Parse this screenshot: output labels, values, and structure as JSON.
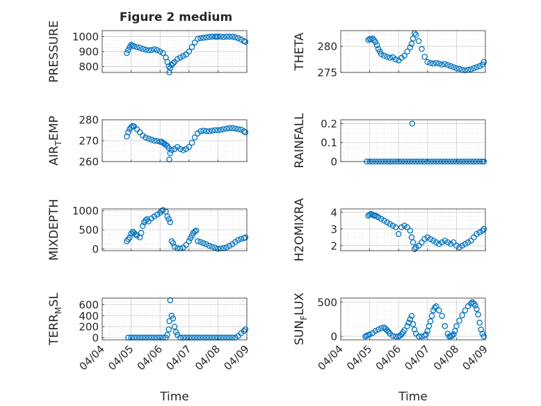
{
  "figure": {
    "title": "Figure 2 medium",
    "marker_color": "#0072bd",
    "x_tick_labels": [
      "04/04",
      "04/05",
      "04/06",
      "04/07",
      "04/08",
      "04/09"
    ],
    "x_label": "Time"
  },
  "chart_data": [
    {
      "type": "scatter",
      "id": "pressure",
      "ylabel": "PRESSURE",
      "xlim": [
        0,
        5
      ],
      "ylim": [
        760,
        1040
      ],
      "yticks": [
        800,
        900,
        1000
      ],
      "grid": true,
      "minor_grid": true,
      "x": [
        0.85,
        0.9,
        0.95,
        1.0,
        1.05,
        1.1,
        1.2,
        1.3,
        1.4,
        1.5,
        1.6,
        1.7,
        1.8,
        1.9,
        2.0,
        2.1,
        2.2,
        2.25,
        2.3,
        2.32,
        2.35,
        2.4,
        2.45,
        2.5,
        2.6,
        2.7,
        2.8,
        2.9,
        3.0,
        3.1,
        3.2,
        3.3,
        3.4,
        3.5,
        3.6,
        3.7,
        3.8,
        3.9,
        3.95,
        4.0,
        4.1,
        4.2,
        4.3,
        4.4,
        4.5,
        4.6,
        4.7,
        4.8,
        4.9,
        4.95
      ],
      "values": [
        890,
        910,
        930,
        945,
        940,
        935,
        930,
        925,
        918,
        912,
        908,
        910,
        915,
        910,
        900,
        890,
        860,
        830,
        800,
        760,
        790,
        810,
        820,
        830,
        850,
        860,
        870,
        880,
        900,
        930,
        960,
        985,
        990,
        992,
        995,
        998,
        1000,
        1000,
        1000,
        1000,
        1000,
        998,
        1000,
        1000,
        1000,
        995,
        990,
        980,
        970,
        965
      ]
    },
    {
      "type": "scatter",
      "id": "theta",
      "ylabel": "THETA",
      "xlim": [
        0,
        5
      ],
      "ylim": [
        275,
        283
      ],
      "yticks": [
        275,
        280
      ],
      "grid": true,
      "minor_grid": true,
      "x": [
        0.95,
        1.0,
        1.05,
        1.1,
        1.15,
        1.2,
        1.25,
        1.3,
        1.35,
        1.4,
        1.5,
        1.6,
        1.7,
        1.8,
        1.9,
        2.0,
        2.1,
        2.2,
        2.3,
        2.4,
        2.45,
        2.5,
        2.55,
        2.6,
        2.7,
        2.8,
        2.9,
        3.0,
        3.1,
        3.2,
        3.3,
        3.4,
        3.5,
        3.6,
        3.7,
        3.8,
        3.9,
        4.0,
        4.1,
        4.2,
        4.3,
        4.4,
        4.5,
        4.6,
        4.7,
        4.8,
        4.9,
        4.95
      ],
      "values": [
        281.2,
        281.4,
        281.3,
        281.5,
        281.2,
        280.8,
        280.2,
        279.5,
        279.0,
        278.5,
        278.2,
        278.0,
        277.8,
        277.9,
        277.5,
        277.3,
        277.8,
        278.2,
        279.0,
        279.8,
        280.5,
        281.5,
        282.5,
        282.2,
        281.0,
        279.5,
        278.0,
        277.0,
        276.8,
        276.7,
        276.8,
        276.7,
        276.5,
        276.6,
        276.4,
        276.2,
        276.0,
        275.8,
        275.7,
        275.5,
        275.4,
        275.5,
        275.6,
        275.8,
        276.0,
        276.2,
        276.5,
        277.0
      ]
    },
    {
      "type": "scatter",
      "id": "air_temp",
      "ylabel": "AIR_TEMP",
      "xlim": [
        0,
        5
      ],
      "ylim": [
        260,
        280
      ],
      "yticks": [
        260,
        270,
        280
      ],
      "grid": true,
      "minor_grid": true,
      "x": [
        0.85,
        0.9,
        0.95,
        1.0,
        1.05,
        1.1,
        1.2,
        1.3,
        1.4,
        1.5,
        1.6,
        1.7,
        1.8,
        1.9,
        2.0,
        2.05,
        2.1,
        2.15,
        2.2,
        2.25,
        2.3,
        2.32,
        2.35,
        2.4,
        2.5,
        2.6,
        2.7,
        2.8,
        2.9,
        3.0,
        3.1,
        3.2,
        3.3,
        3.4,
        3.5,
        3.6,
        3.7,
        3.8,
        3.9,
        4.0,
        4.1,
        4.2,
        4.3,
        4.4,
        4.5,
        4.6,
        4.7,
        4.8,
        4.9,
        4.95
      ],
      "values": [
        272.0,
        274.0,
        275.5,
        276.5,
        277.0,
        276.8,
        275.5,
        274.0,
        272.5,
        271.5,
        271.0,
        270.5,
        270.0,
        269.8,
        269.5,
        269.5,
        269.0,
        268.5,
        268.0,
        267.5,
        266.5,
        261.0,
        264.0,
        265.5,
        266.0,
        267.0,
        266.0,
        265.5,
        266.0,
        267.0,
        269.0,
        271.5,
        273.5,
        274.5,
        274.8,
        274.6,
        274.5,
        274.8,
        275.0,
        275.0,
        275.2,
        275.5,
        275.8,
        276.0,
        276.0,
        275.8,
        275.5,
        275.3,
        274.5,
        274.0
      ]
    },
    {
      "type": "scatter",
      "id": "rainfall",
      "ylabel": "RAINFALL",
      "xlim": [
        0,
        5
      ],
      "ylim": [
        0,
        0.22
      ],
      "yticks": [
        0,
        0.1,
        0.2
      ],
      "grid": true,
      "minor_grid": true,
      "x": [
        0.9,
        1.0,
        1.1,
        1.2,
        1.3,
        1.4,
        1.5,
        1.6,
        1.7,
        1.8,
        1.9,
        2.0,
        2.1,
        2.2,
        2.3,
        2.4,
        2.47,
        2.5,
        2.6,
        2.7,
        2.8,
        2.9,
        3.0,
        3.1,
        3.2,
        3.3,
        3.4,
        3.5,
        3.6,
        3.7,
        3.8,
        3.9,
        4.0,
        4.1,
        4.2,
        4.3,
        4.4,
        4.5,
        4.6,
        4.7,
        4.8,
        4.9,
        4.95
      ],
      "values": [
        0,
        0,
        0,
        0,
        0,
        0,
        0,
        0,
        0,
        0,
        0,
        0,
        0,
        0,
        0,
        0,
        0.2,
        0,
        0,
        0,
        0,
        0,
        0,
        0,
        0,
        0,
        0,
        0,
        0,
        0,
        0,
        0,
        0,
        0,
        0,
        0,
        0,
        0,
        0,
        0,
        0,
        0,
        0
      ]
    },
    {
      "type": "scatter",
      "id": "mixdepth",
      "ylabel": "MIXDEPTH",
      "xlim": [
        0,
        5
      ],
      "ylim": [
        -50,
        1050
      ],
      "yticks": [
        0,
        500,
        1000
      ],
      "grid": true,
      "minor_grid": true,
      "x": [
        0.85,
        0.9,
        0.95,
        1.0,
        1.05,
        1.1,
        1.15,
        1.2,
        1.3,
        1.35,
        1.4,
        1.45,
        1.5,
        1.55,
        1.6,
        1.7,
        1.8,
        1.9,
        2.0,
        2.05,
        2.1,
        2.2,
        2.25,
        2.3,
        2.35,
        2.4,
        2.45,
        2.5,
        2.6,
        2.7,
        2.8,
        2.9,
        3.0,
        3.05,
        3.1,
        3.15,
        3.2,
        3.25,
        3.3,
        3.4,
        3.5,
        3.6,
        3.7,
        3.8,
        3.9,
        4.0,
        4.1,
        4.2,
        4.3,
        4.4,
        4.5,
        4.6,
        4.7,
        4.8,
        4.9,
        4.95
      ],
      "values": [
        200,
        250,
        300,
        400,
        450,
        420,
        380,
        350,
        300,
        420,
        600,
        700,
        750,
        780,
        720,
        800,
        850,
        900,
        950,
        1000,
        1020,
        980,
        850,
        780,
        700,
        200,
        150,
        50,
        20,
        10,
        30,
        100,
        200,
        280,
        350,
        420,
        460,
        480,
        200,
        180,
        150,
        120,
        80,
        50,
        30,
        0,
        10,
        20,
        40,
        80,
        120,
        180,
        230,
        260,
        280,
        300
      ]
    },
    {
      "type": "scatter",
      "id": "h2omixra",
      "ylabel": "H2OMIXRA",
      "xlim": [
        0,
        5
      ],
      "ylim": [
        1.7,
        4.2
      ],
      "yticks": [
        2,
        3,
        4
      ],
      "grid": true,
      "minor_grid": true,
      "x": [
        0.95,
        1.0,
        1.05,
        1.1,
        1.15,
        1.2,
        1.25,
        1.3,
        1.4,
        1.5,
        1.6,
        1.7,
        1.8,
        1.9,
        2.0,
        2.1,
        2.2,
        2.3,
        2.4,
        2.45,
        2.5,
        2.55,
        2.6,
        2.7,
        2.8,
        2.9,
        3.0,
        3.1,
        3.2,
        3.3,
        3.4,
        3.5,
        3.6,
        3.7,
        3.8,
        3.9,
        4.0,
        4.1,
        4.2,
        4.3,
        4.4,
        4.5,
        4.6,
        4.7,
        4.8,
        4.9,
        4.95
      ],
      "values": [
        3.8,
        3.85,
        3.9,
        3.85,
        3.8,
        3.8,
        3.75,
        3.7,
        3.6,
        3.5,
        3.4,
        3.3,
        3.2,
        3.1,
        2.7,
        3.1,
        3.2,
        3.1,
        2.9,
        2.5,
        2.2,
        1.8,
        1.9,
        2.0,
        2.2,
        2.4,
        2.5,
        2.4,
        2.3,
        2.2,
        2.1,
        2.2,
        2.3,
        2.2,
        2.1,
        2.2,
        2.0,
        1.9,
        2.0,
        2.1,
        2.2,
        2.3,
        2.5,
        2.7,
        2.8,
        2.9,
        3.0
      ]
    },
    {
      "type": "scatter",
      "id": "terr_msl",
      "ylabel": "TERR_MSL",
      "xlim": [
        0,
        5
      ],
      "ylim": [
        -40,
        720
      ],
      "yticks": [
        0,
        200,
        400,
        600
      ],
      "grid": true,
      "minor_grid": true,
      "x": [
        0.9,
        1.0,
        1.1,
        1.2,
        1.3,
        1.4,
        1.5,
        1.6,
        1.7,
        1.8,
        1.9,
        2.0,
        2.1,
        2.2,
        2.25,
        2.3,
        2.32,
        2.35,
        2.4,
        2.45,
        2.5,
        2.55,
        2.6,
        2.7,
        2.8,
        2.9,
        3.0,
        3.1,
        3.2,
        3.3,
        3.4,
        3.5,
        3.6,
        3.7,
        3.8,
        3.9,
        4.0,
        4.1,
        4.2,
        4.3,
        4.4,
        4.5,
        4.6,
        4.7,
        4.8,
        4.9,
        4.95
      ],
      "values": [
        0,
        0,
        0,
        0,
        0,
        0,
        0,
        0,
        0,
        0,
        0,
        0,
        0,
        0,
        50,
        150,
        300,
        680,
        400,
        350,
        200,
        100,
        50,
        0,
        0,
        0,
        0,
        0,
        0,
        0,
        0,
        0,
        0,
        0,
        0,
        0,
        0,
        0,
        0,
        0,
        0,
        0,
        0,
        30,
        80,
        120,
        150
      ]
    },
    {
      "type": "scatter",
      "id": "sun_flux",
      "ylabel": "SUN_FLUX",
      "xlim": [
        0,
        5
      ],
      "ylim": [
        -50,
        560
      ],
      "yticks": [
        0,
        500
      ],
      "grid": true,
      "minor_grid": true,
      "x": [
        0.85,
        0.9,
        0.95,
        1.0,
        1.1,
        1.2,
        1.3,
        1.4,
        1.5,
        1.55,
        1.6,
        1.65,
        1.7,
        1.8,
        1.9,
        2.0,
        2.05,
        2.1,
        2.15,
        2.2,
        2.3,
        2.35,
        2.4,
        2.45,
        2.5,
        2.55,
        2.6,
        2.7,
        2.8,
        2.9,
        2.95,
        3.0,
        3.05,
        3.1,
        3.15,
        3.2,
        3.25,
        3.3,
        3.4,
        3.5,
        3.6,
        3.7,
        3.75,
        3.8,
        3.85,
        3.9,
        3.95,
        4.0,
        4.1,
        4.2,
        4.3,
        4.4,
        4.5,
        4.55,
        4.6,
        4.65,
        4.7,
        4.75,
        4.8,
        4.85,
        4.9,
        4.95
      ],
      "values": [
        0,
        10,
        20,
        30,
        50,
        80,
        100,
        120,
        130,
        110,
        90,
        70,
        40,
        10,
        0,
        0,
        10,
        30,
        60,
        90,
        150,
        200,
        250,
        300,
        180,
        100,
        40,
        0,
        0,
        10,
        30,
        80,
        150,
        220,
        300,
        380,
        420,
        440,
        380,
        300,
        150,
        40,
        0,
        0,
        10,
        30,
        80,
        150,
        230,
        310,
        380,
        440,
        480,
        500,
        480,
        450,
        400,
        320,
        200,
        100,
        40,
        0
      ]
    }
  ]
}
